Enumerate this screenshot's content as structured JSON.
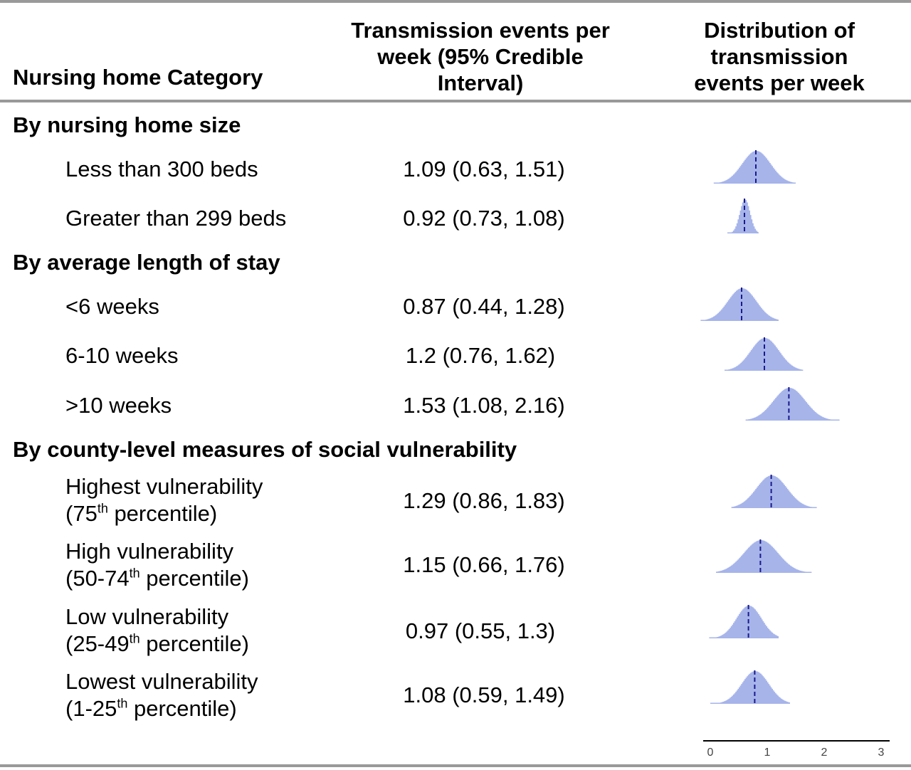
{
  "header": {
    "category": "Nursing home Category",
    "estimate_line1": "Transmission events per",
    "estimate_line2": "week (95% Credible",
    "estimate_line3": "Interval)",
    "dist_line1": "Distribution of",
    "dist_line2": "transmission",
    "dist_line3": "events per week"
  },
  "groups": [
    {
      "title": "By nursing home size",
      "rows": [
        {
          "label": "Less than 300 beds",
          "estimate": "1.09 (0.63, 1.51)",
          "median": 0.8,
          "lo": 0.06,
          "hi": 1.5,
          "sd": 0.25
        },
        {
          "label": "Greater than 299 beds",
          "estimate": "0.92 (0.73, 1.08)",
          "median": 0.6,
          "lo": 0.3,
          "hi": 0.85,
          "sd": 0.09
        }
      ]
    },
    {
      "title": "By average length of stay",
      "rows": [
        {
          "label": "<6 weeks",
          "estimate": "0.87 (0.44, 1.28)",
          "median": 0.55,
          "lo": -0.17,
          "hi": 1.2,
          "sd": 0.25
        },
        {
          "label": "6-10 weeks",
          "estimate": "1.2 (0.76, 1.62)",
          "median": 0.95,
          "lo": 0.25,
          "hi": 1.63,
          "sd": 0.25
        },
        {
          "label": ">10 weeks",
          "estimate": "1.53 (1.08, 2.16)",
          "median": 1.38,
          "lo": 0.62,
          "hi": 2.27,
          "sd": 0.28
        }
      ]
    },
    {
      "title": "By county-level measures of social vulnerability",
      "rows": [
        {
          "label": "Highest vulnerability",
          "pct_prefix": "(75",
          "pct_sup": "th",
          "pct_suffix": " percentile)",
          "estimate": "1.29 (0.86, 1.83)",
          "median": 1.07,
          "lo": 0.37,
          "hi": 1.87,
          "sd": 0.27
        },
        {
          "label": "High vulnerability",
          "pct_prefix": "(50-74",
          "pct_sup": "th",
          "pct_suffix": " percentile)",
          "estimate": "1.15 (0.66, 1.76)",
          "median": 0.88,
          "lo": 0.1,
          "hi": 1.78,
          "sd": 0.3
        },
        {
          "label": "Low vulnerability",
          "pct_prefix": "(25-49",
          "pct_sup": "th",
          "pct_suffix": " percentile)",
          "estimate": "0.97 (0.55, 1.3)",
          "median": 0.67,
          "lo": -0.02,
          "hi": 1.2,
          "sd": 0.22
        },
        {
          "label": "Lowest vulnerability",
          "pct_prefix": "(1-25",
          "pct_sup": "th",
          "pct_suffix": " percentile)",
          "estimate": "1.08 (0.59, 1.49)",
          "median": 0.78,
          "lo": 0.0,
          "hi": 1.4,
          "sd": 0.24
        }
      ]
    }
  ],
  "axis": {
    "ticks": [
      "0",
      "1",
      "2",
      "3"
    ],
    "domain": [
      0,
      3
    ]
  },
  "colors": {
    "fill": "#a6b4ea",
    "median_line": "#1a1a8c",
    "rule": "#999999"
  }
}
